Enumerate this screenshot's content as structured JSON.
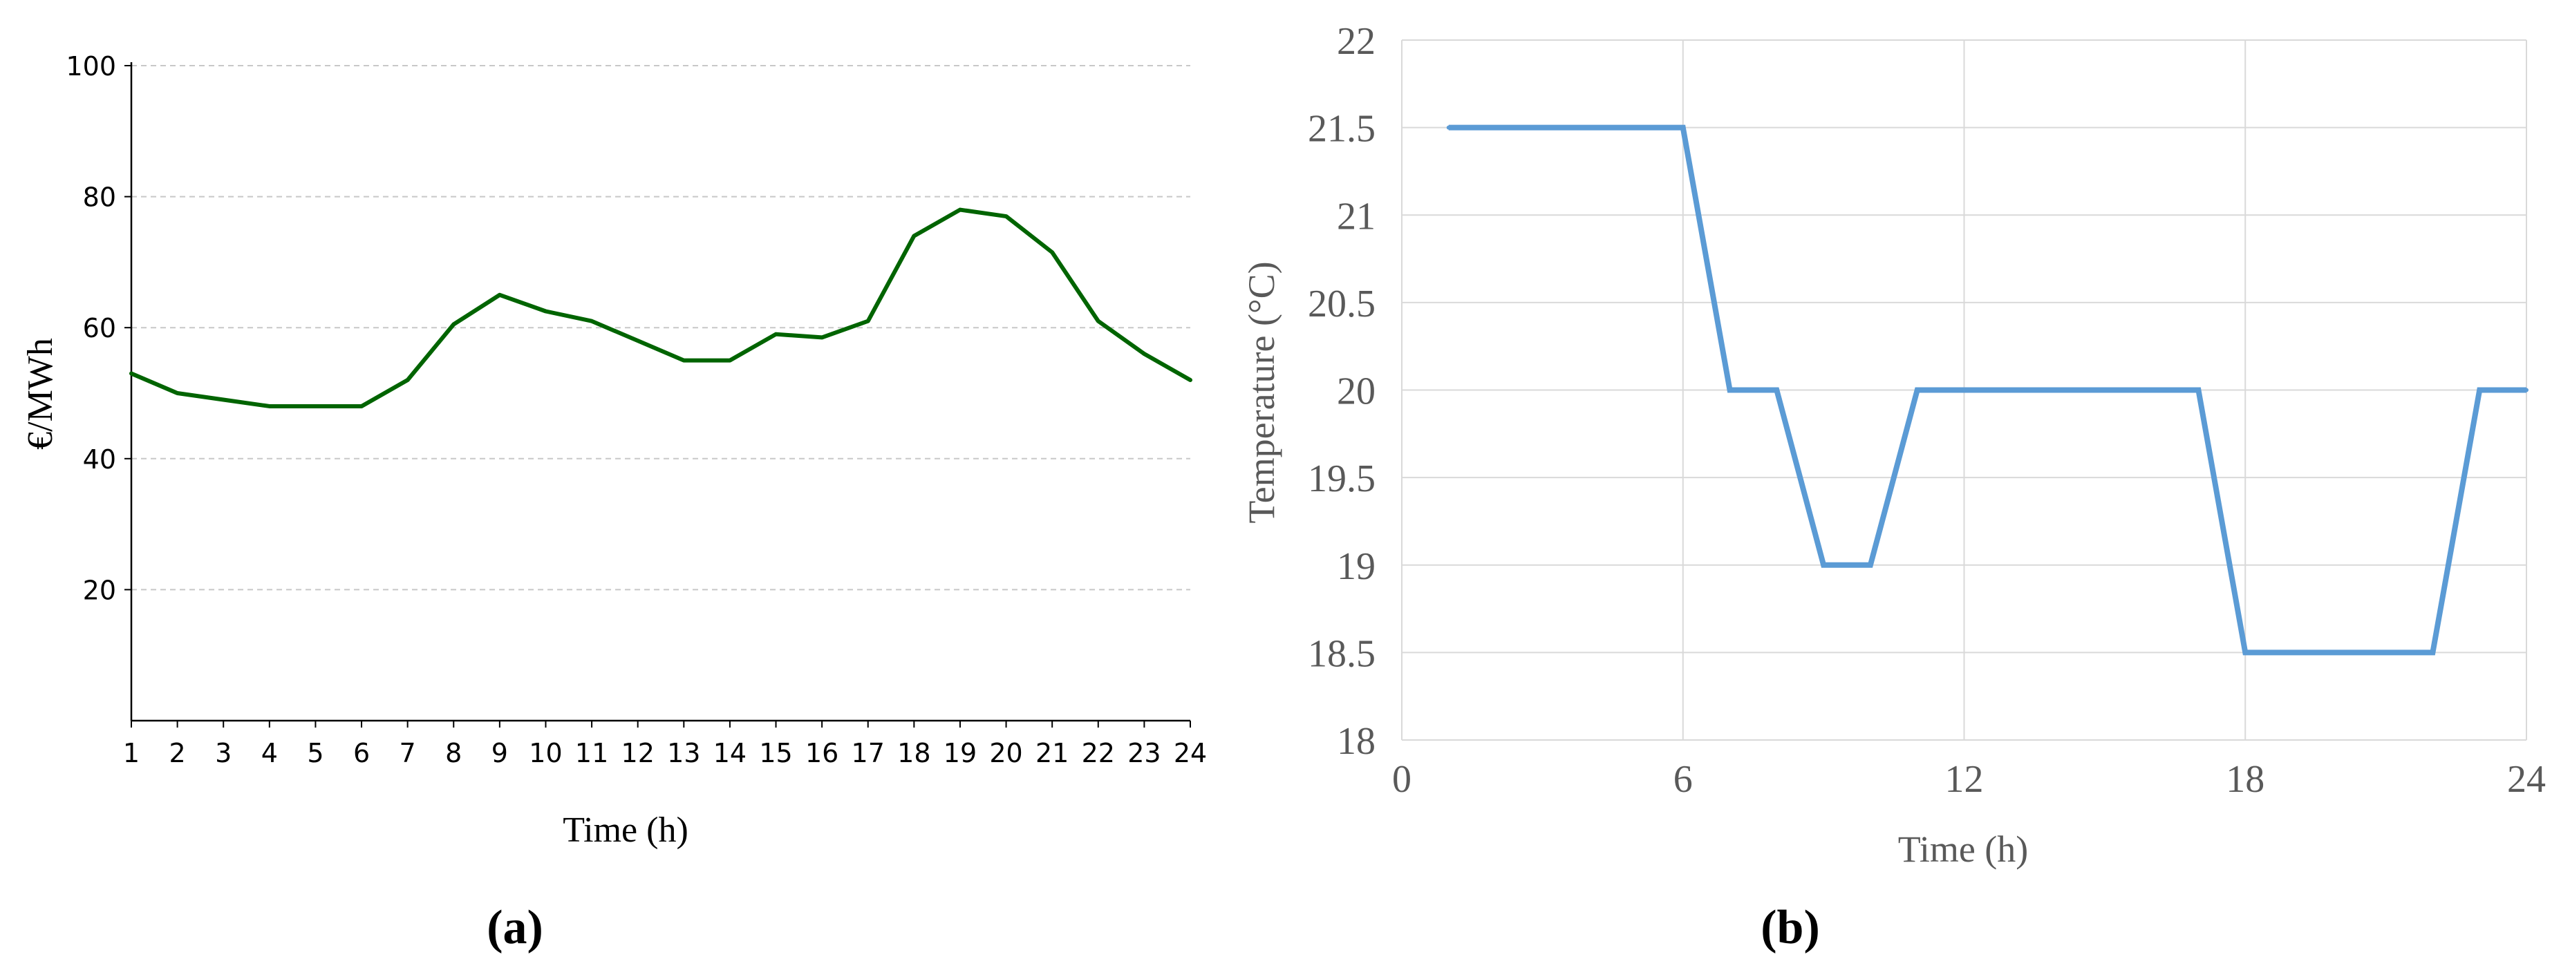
{
  "chart_data": [
    {
      "panel_label": "(a)",
      "type": "line",
      "title": "",
      "xlabel": "Time (h)",
      "ylabel": "€/MWh",
      "x": [
        1,
        2,
        3,
        4,
        5,
        6,
        7,
        8,
        9,
        10,
        11,
        12,
        13,
        14,
        15,
        16,
        17,
        18,
        19,
        20,
        21,
        22,
        23,
        24
      ],
      "xticks": [
        1,
        2,
        3,
        4,
        5,
        6,
        7,
        8,
        9,
        10,
        11,
        12,
        13,
        14,
        15,
        16,
        17,
        18,
        19,
        20,
        21,
        22,
        23,
        24
      ],
      "yticks": [
        20,
        40,
        60,
        80,
        100
      ],
      "ylim": [
        0,
        100
      ],
      "xlim": [
        1,
        24
      ],
      "grid": "horizontal-dashed",
      "series": [
        {
          "values": [
            53,
            50,
            49,
            48,
            48,
            48,
            52,
            60.5,
            65,
            62.5,
            61,
            58,
            55,
            55,
            59,
            58.5,
            61,
            74,
            78,
            77,
            71.5,
            61,
            56,
            52
          ],
          "color": "#006400"
        }
      ]
    },
    {
      "panel_label": "(b)",
      "type": "line",
      "title": "",
      "xlabel": "Time (h)",
      "ylabel": "Temperature (°C)",
      "xticks": [
        0,
        6,
        12,
        18,
        24
      ],
      "yticks": [
        18,
        18.5,
        19,
        19.5,
        20,
        20.5,
        21,
        21.5,
        22
      ],
      "xlim": [
        0,
        24
      ],
      "ylim": [
        18,
        22
      ],
      "grid": "both",
      "series": [
        {
          "points": [
            [
              1,
              21.5
            ],
            [
              6,
              21.5
            ],
            [
              7,
              20
            ],
            [
              8,
              20
            ],
            [
              9,
              19
            ],
            [
              10,
              19
            ],
            [
              11,
              20
            ],
            [
              17,
              20
            ],
            [
              18,
              18.5
            ],
            [
              22,
              18.5
            ],
            [
              23,
              20
            ],
            [
              24,
              20
            ]
          ],
          "color": "#5B9BD5"
        }
      ]
    }
  ],
  "colors": {
    "axis": "#000000",
    "grid_a": "#c8c8c8",
    "grid_b": "#d9d9d9",
    "tick_text_b": "#595959"
  }
}
